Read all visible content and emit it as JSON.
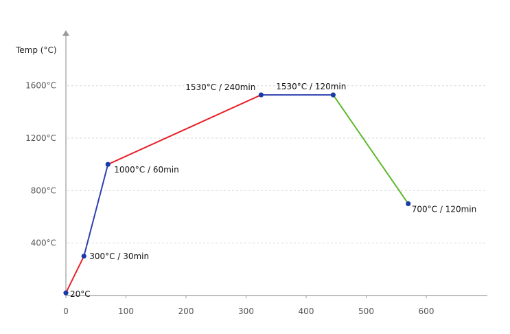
{
  "chart_data": {
    "type": "line",
    "title": "",
    "ylabel": "Temp (°C)",
    "xlabel": "",
    "xlim": [
      0,
      700
    ],
    "ylim": [
      0,
      1700
    ],
    "x_ticks": [
      0,
      100,
      200,
      300,
      400,
      500,
      600
    ],
    "x_tick_labels": [
      "0",
      "100",
      "200",
      "300",
      "400",
      "500",
      "600"
    ],
    "y_ticks": [
      400,
      800,
      1200,
      1600
    ],
    "y_tick_labels": [
      "400°C",
      "800°C",
      "1200°C",
      "1600°C"
    ],
    "grid": true,
    "legend": "none",
    "points": [
      {
        "x": 0,
        "y": 20,
        "label": "20°C"
      },
      {
        "x": 30,
        "y": 300,
        "label": "300°C / 30min"
      },
      {
        "x": 70,
        "y": 1000,
        "label": "1000°C / 60min"
      },
      {
        "x": 325,
        "y": 1530,
        "label": "1530°C / 240min"
      },
      {
        "x": 445,
        "y": 1530,
        "label": "1530°C / 120min"
      },
      {
        "x": 570,
        "y": 700,
        "label": "700°C  / 120min"
      }
    ],
    "segments": [
      {
        "from": 0,
        "to": 1,
        "color": "#e8222a"
      },
      {
        "from": 1,
        "to": 2,
        "color": "#2f3fb0"
      },
      {
        "from": 2,
        "to": 3,
        "color": "#e8222a"
      },
      {
        "from": 3,
        "to": 4,
        "color": "#2f3fb0"
      },
      {
        "from": 4,
        "to": 5,
        "color": "#5cb82a"
      }
    ],
    "marker_color": "#1a3aa8"
  }
}
